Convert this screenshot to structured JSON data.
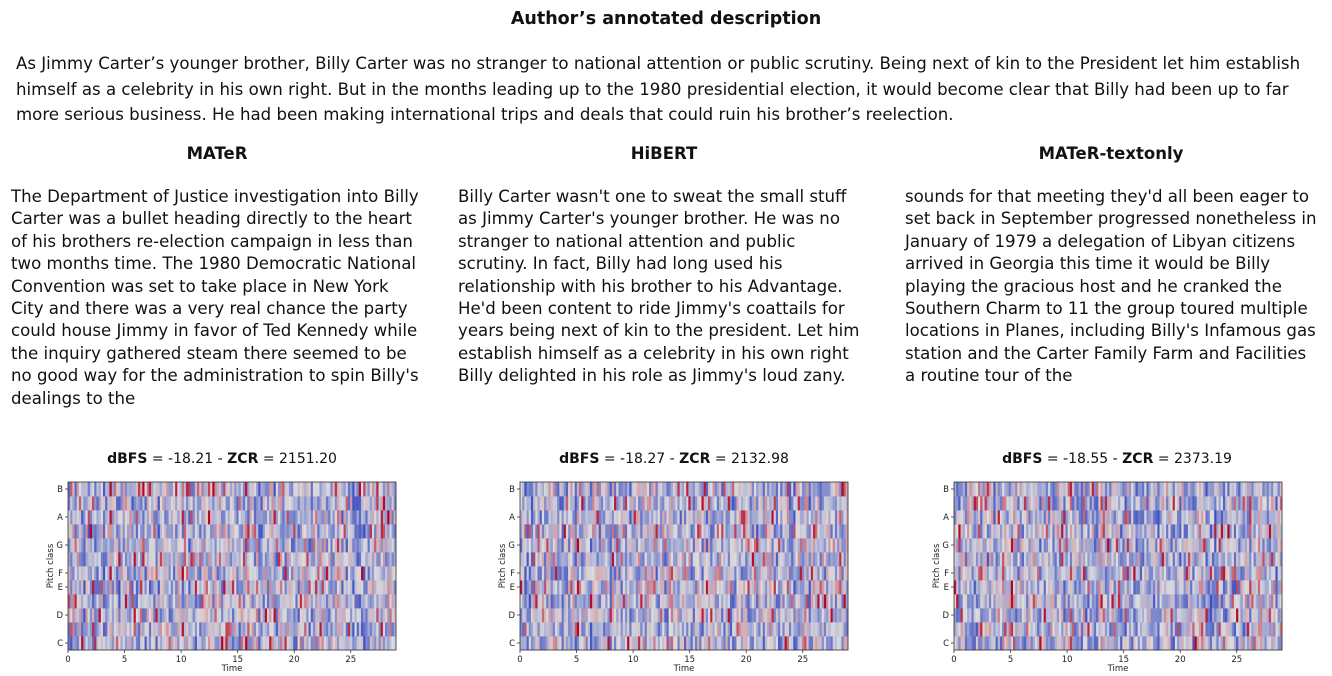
{
  "title": "Author’s annotated description",
  "description": "As Jimmy Carter’s younger brother, Billy Carter was no stranger to national attention or public scrutiny. Being next of kin to the President let him establish himself as a celebrity in his own right. But in the months leading up to the 1980 presidential election, it would become clear that Billy had been up to far more serious business. He had been making international trips and deals that could ruin his brother’s reelection.",
  "columns": [
    {
      "title": "MATeR",
      "text": "The Department of Justice investigation into Billy Carter was a bullet heading directly to the heart of his brothers re-election campaign in less than two months time. The 1980 Democratic National Convention was set to take place in New York City and there was a very real chance the party could house Jimmy in favor of Ted Kennedy while the inquiry gathered steam there seemed to be no good way for the administration to spin Billy's dealings to the",
      "metric_label_1": "dBFS",
      "metric_value_1": "= -18.21 -",
      "metric_label_2": "ZCR",
      "metric_value_2": "= 2151.20"
    },
    {
      "title": "HiBERT",
      "text": "Billy Carter wasn't one to sweat the small stuff as Jimmy Carter's younger brother. He was no stranger to national attention and public scrutiny. In fact, Billy had long used his relationship with his brother to his Advantage. He'd been content to ride Jimmy's coattails for years being next of kin to the president. Let him establish himself as a celebrity in his own right Billy delighted in his role as Jimmy's loud zany.",
      "metric_label_1": "dBFS",
      "metric_value_1": "= -18.27 -",
      "metric_label_2": "ZCR",
      "metric_value_2": "= 2132.98"
    },
    {
      "title": "MATeR-textonly",
      "text": "sounds for that meeting they'd all been eager to set back in September progressed nonetheless in January of 1979 a delegation of Libyan citizens arrived in Georgia this time it would be Billy playing the gracious host and he cranked the Southern Charm to 11 the group toured multiple locations in Planes, including Billy's Infamous gas station and the Carter Family Farm and Facilities a routine tour of the",
      "metric_label_1": "dBFS",
      "metric_value_1": "= -18.55 -",
      "metric_label_2": "ZCR",
      "metric_value_2": "= 2373.19"
    }
  ],
  "chart_data": [
    {
      "type": "heatmap",
      "colormap": "coolwarm",
      "xlabel": "Time",
      "ylabel": "Pitch class",
      "x_ticks": [
        0,
        5,
        10,
        15,
        20,
        25
      ],
      "y_ticks": [
        "C",
        "D",
        "E",
        "F",
        "G",
        "A",
        "B"
      ],
      "xlim": [
        0,
        29
      ],
      "pitch_classes": 12
    },
    {
      "type": "heatmap",
      "colormap": "coolwarm",
      "xlabel": "Time",
      "ylabel": "Pitch class",
      "x_ticks": [
        0,
        5,
        10,
        15,
        20,
        25
      ],
      "y_ticks": [
        "C",
        "D",
        "E",
        "F",
        "G",
        "A",
        "B"
      ],
      "xlim": [
        0,
        29
      ],
      "pitch_classes": 12
    },
    {
      "type": "heatmap",
      "colormap": "coolwarm",
      "xlabel": "Time",
      "ylabel": "Pitch class",
      "x_ticks": [
        0,
        5,
        10,
        15,
        20,
        25
      ],
      "y_ticks": [
        "C",
        "D",
        "E",
        "F",
        "G",
        "A",
        "B"
      ],
      "xlim": [
        0,
        29
      ],
      "pitch_classes": 12
    }
  ]
}
